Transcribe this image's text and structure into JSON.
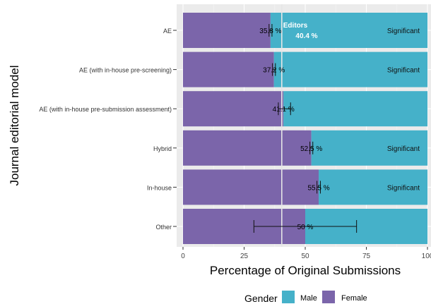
{
  "chart_data": {
    "type": "bar",
    "stacked": true,
    "orientation": "horizontal",
    "xlabel": "Percentage of Original Submissions",
    "ylabel": "Journal editorial model",
    "xlim": [
      0,
      100
    ],
    "x_ticks": [
      "0",
      "25",
      "50",
      "75",
      "100"
    ],
    "x_tick_values": [
      0,
      25,
      50,
      75,
      100
    ],
    "categories": [
      "AE",
      "AE (with in-house pre-screening)",
      "AE (with in-house pre-submission assessment)",
      "Hybrid",
      "In-house",
      "Other"
    ],
    "series": [
      {
        "name": "Female",
        "color": "#7b65aa",
        "values": [
          35.8,
          37.2,
          41.1,
          52.5,
          55.5,
          50
        ]
      },
      {
        "name": "Male",
        "color": "#45b1c9",
        "values": [
          64.2,
          62.8,
          58.9,
          47.5,
          44.5,
          50
        ]
      }
    ],
    "value_labels": [
      "35.8 %",
      "37.2 %",
      "41.1 %",
      "52.5 %",
      "55.5 %",
      "50 %"
    ],
    "error_bars": [
      [
        35.2,
        36.4
      ],
      [
        36.6,
        37.8
      ],
      [
        39.0,
        44.0
      ],
      [
        51.9,
        53.1
      ],
      [
        54.8,
        56.2
      ],
      [
        29.0,
        71.0
      ]
    ],
    "significance": [
      "Significant",
      "Significant",
      "",
      "Significant",
      "Significant",
      ""
    ],
    "reference_line": {
      "value": 40.4,
      "label": "Editors",
      "value_label": "40.4 %"
    },
    "legend": {
      "title": "Gender",
      "position": "bottom",
      "entries": [
        {
          "label": "Male",
          "color": "#45b1c9"
        },
        {
          "label": "Female",
          "color": "#7b65aa"
        }
      ]
    },
    "panel_background": "#ebebeb",
    "grid": true
  }
}
